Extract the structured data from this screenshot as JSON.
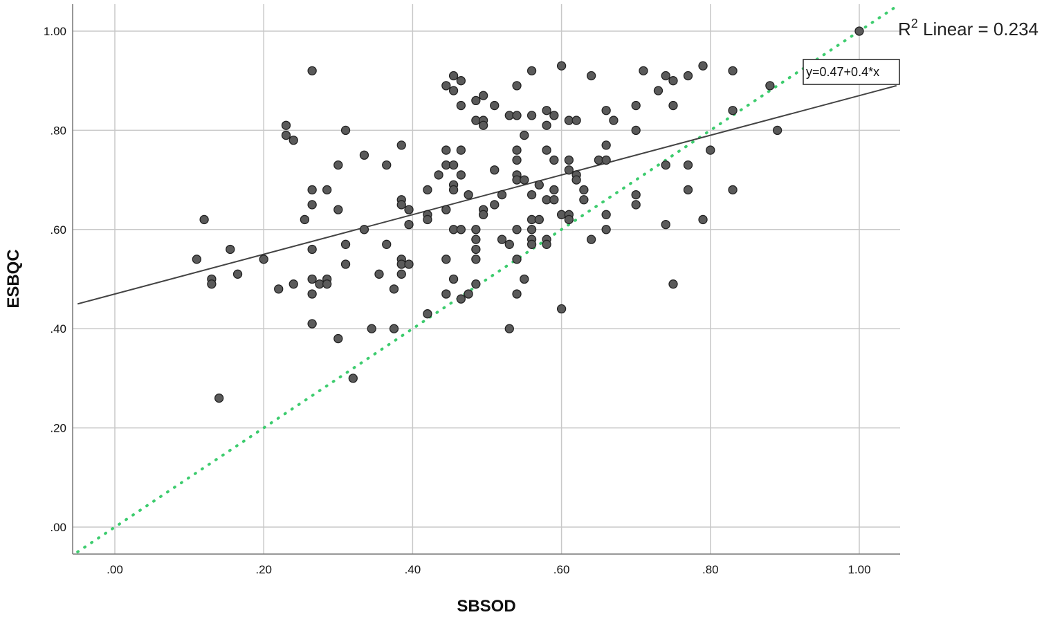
{
  "chart_data": {
    "type": "scatter",
    "xlabel": "SBSOD",
    "ylabel": "ESBQC",
    "xlim": [
      -0.05,
      1.05
    ],
    "ylim": [
      -0.05,
      1.05
    ],
    "xticks": [
      ".00",
      ".20",
      ".40",
      ".60",
      ".80",
      "1.00"
    ],
    "xtick_values": [
      0,
      0.2,
      0.4,
      0.6,
      0.8,
      1.0
    ],
    "yticks": [
      ".00",
      ".20",
      ".40",
      ".60",
      ".80",
      "1.00"
    ],
    "ytick_values": [
      0,
      0.2,
      0.4,
      0.6,
      0.8,
      1.0
    ],
    "grid": true,
    "fit_line": {
      "intercept": 0.47,
      "slope": 0.4,
      "label": "y=0.47+0.4*x",
      "color": "#444444"
    },
    "r2_annotation": {
      "prefix": "R",
      "superscript": "2",
      "text": " Linear = 0.234"
    },
    "reference_line": {
      "type": "y=x",
      "color": "#3dcc6e",
      "style": "dotted"
    },
    "marker_color": "#5a5a5a",
    "points": [
      [
        0.11,
        0.54
      ],
      [
        0.12,
        0.62
      ],
      [
        0.13,
        0.5
      ],
      [
        0.13,
        0.49
      ],
      [
        0.14,
        0.26
      ],
      [
        0.155,
        0.56
      ],
      [
        0.165,
        0.51
      ],
      [
        0.2,
        0.54
      ],
      [
        0.22,
        0.48
      ],
      [
        0.23,
        0.81
      ],
      [
        0.23,
        0.79
      ],
      [
        0.24,
        0.78
      ],
      [
        0.24,
        0.49
      ],
      [
        0.255,
        0.62
      ],
      [
        0.265,
        0.92
      ],
      [
        0.265,
        0.68
      ],
      [
        0.265,
        0.65
      ],
      [
        0.265,
        0.56
      ],
      [
        0.265,
        0.5
      ],
      [
        0.265,
        0.47
      ],
      [
        0.265,
        0.41
      ],
      [
        0.275,
        0.49
      ],
      [
        0.285,
        0.68
      ],
      [
        0.285,
        0.5
      ],
      [
        0.285,
        0.49
      ],
      [
        0.3,
        0.73
      ],
      [
        0.3,
        0.64
      ],
      [
        0.3,
        0.38
      ],
      [
        0.31,
        0.8
      ],
      [
        0.31,
        0.57
      ],
      [
        0.31,
        0.53
      ],
      [
        0.32,
        0.3
      ],
      [
        0.335,
        0.75
      ],
      [
        0.335,
        0.6
      ],
      [
        0.345,
        0.4
      ],
      [
        0.355,
        0.51
      ],
      [
        0.365,
        0.73
      ],
      [
        0.365,
        0.57
      ],
      [
        0.375,
        0.48
      ],
      [
        0.375,
        0.4
      ],
      [
        0.385,
        0.77
      ],
      [
        0.385,
        0.66
      ],
      [
        0.385,
        0.65
      ],
      [
        0.385,
        0.54
      ],
      [
        0.385,
        0.53
      ],
      [
        0.385,
        0.51
      ],
      [
        0.395,
        0.64
      ],
      [
        0.395,
        0.61
      ],
      [
        0.395,
        0.53
      ],
      [
        0.42,
        0.68
      ],
      [
        0.42,
        0.63
      ],
      [
        0.42,
        0.62
      ],
      [
        0.42,
        0.43
      ],
      [
        0.435,
        0.71
      ],
      [
        0.445,
        0.89
      ],
      [
        0.445,
        0.76
      ],
      [
        0.445,
        0.73
      ],
      [
        0.445,
        0.64
      ],
      [
        0.445,
        0.54
      ],
      [
        0.445,
        0.47
      ],
      [
        0.455,
        0.91
      ],
      [
        0.455,
        0.88
      ],
      [
        0.455,
        0.73
      ],
      [
        0.455,
        0.69
      ],
      [
        0.455,
        0.68
      ],
      [
        0.455,
        0.6
      ],
      [
        0.455,
        0.5
      ],
      [
        0.465,
        0.9
      ],
      [
        0.465,
        0.85
      ],
      [
        0.465,
        0.76
      ],
      [
        0.465,
        0.71
      ],
      [
        0.465,
        0.6
      ],
      [
        0.465,
        0.46
      ],
      [
        0.475,
        0.67
      ],
      [
        0.475,
        0.47
      ],
      [
        0.485,
        0.86
      ],
      [
        0.485,
        0.82
      ],
      [
        0.485,
        0.6
      ],
      [
        0.485,
        0.58
      ],
      [
        0.485,
        0.56
      ],
      [
        0.485,
        0.54
      ],
      [
        0.485,
        0.49
      ],
      [
        0.495,
        0.87
      ],
      [
        0.495,
        0.82
      ],
      [
        0.495,
        0.81
      ],
      [
        0.495,
        0.64
      ],
      [
        0.495,
        0.63
      ],
      [
        0.51,
        0.85
      ],
      [
        0.51,
        0.72
      ],
      [
        0.51,
        0.65
      ],
      [
        0.52,
        0.67
      ],
      [
        0.52,
        0.58
      ],
      [
        0.53,
        0.83
      ],
      [
        0.53,
        0.57
      ],
      [
        0.53,
        0.4
      ],
      [
        0.54,
        0.89
      ],
      [
        0.54,
        0.83
      ],
      [
        0.54,
        0.76
      ],
      [
        0.54,
        0.74
      ],
      [
        0.54,
        0.71
      ],
      [
        0.54,
        0.7
      ],
      [
        0.54,
        0.6
      ],
      [
        0.54,
        0.54
      ],
      [
        0.54,
        0.47
      ],
      [
        0.55,
        0.79
      ],
      [
        0.55,
        0.7
      ],
      [
        0.55,
        0.5
      ],
      [
        0.56,
        0.92
      ],
      [
        0.56,
        0.83
      ],
      [
        0.56,
        0.67
      ],
      [
        0.56,
        0.62
      ],
      [
        0.56,
        0.6
      ],
      [
        0.56,
        0.58
      ],
      [
        0.56,
        0.57
      ],
      [
        0.57,
        0.69
      ],
      [
        0.57,
        0.62
      ],
      [
        0.58,
        0.84
      ],
      [
        0.58,
        0.81
      ],
      [
        0.58,
        0.76
      ],
      [
        0.58,
        0.66
      ],
      [
        0.58,
        0.58
      ],
      [
        0.58,
        0.57
      ],
      [
        0.59,
        0.83
      ],
      [
        0.59,
        0.74
      ],
      [
        0.59,
        0.68
      ],
      [
        0.59,
        0.66
      ],
      [
        0.6,
        0.93
      ],
      [
        0.6,
        0.63
      ],
      [
        0.6,
        0.44
      ],
      [
        0.61,
        0.82
      ],
      [
        0.61,
        0.74
      ],
      [
        0.61,
        0.72
      ],
      [
        0.61,
        0.63
      ],
      [
        0.61,
        0.62
      ],
      [
        0.62,
        0.82
      ],
      [
        0.62,
        0.71
      ],
      [
        0.62,
        0.7
      ],
      [
        0.63,
        0.68
      ],
      [
        0.63,
        0.66
      ],
      [
        0.64,
        0.91
      ],
      [
        0.64,
        0.58
      ],
      [
        0.65,
        0.74
      ],
      [
        0.66,
        0.84
      ],
      [
        0.66,
        0.77
      ],
      [
        0.66,
        0.74
      ],
      [
        0.66,
        0.63
      ],
      [
        0.66,
        0.6
      ],
      [
        0.67,
        0.82
      ],
      [
        0.7,
        0.85
      ],
      [
        0.7,
        0.8
      ],
      [
        0.7,
        0.67
      ],
      [
        0.7,
        0.65
      ],
      [
        0.71,
        0.92
      ],
      [
        0.73,
        0.88
      ],
      [
        0.74,
        0.91
      ],
      [
        0.74,
        0.73
      ],
      [
        0.74,
        0.61
      ],
      [
        0.75,
        0.9
      ],
      [
        0.75,
        0.85
      ],
      [
        0.75,
        0.49
      ],
      [
        0.77,
        0.91
      ],
      [
        0.77,
        0.73
      ],
      [
        0.77,
        0.68
      ],
      [
        0.79,
        0.93
      ],
      [
        0.79,
        0.62
      ],
      [
        0.8,
        0.76
      ],
      [
        0.83,
        0.92
      ],
      [
        0.83,
        0.84
      ],
      [
        0.83,
        0.68
      ],
      [
        0.88,
        0.89
      ],
      [
        0.89,
        0.8
      ],
      [
        1.0,
        1.0
      ]
    ]
  }
}
